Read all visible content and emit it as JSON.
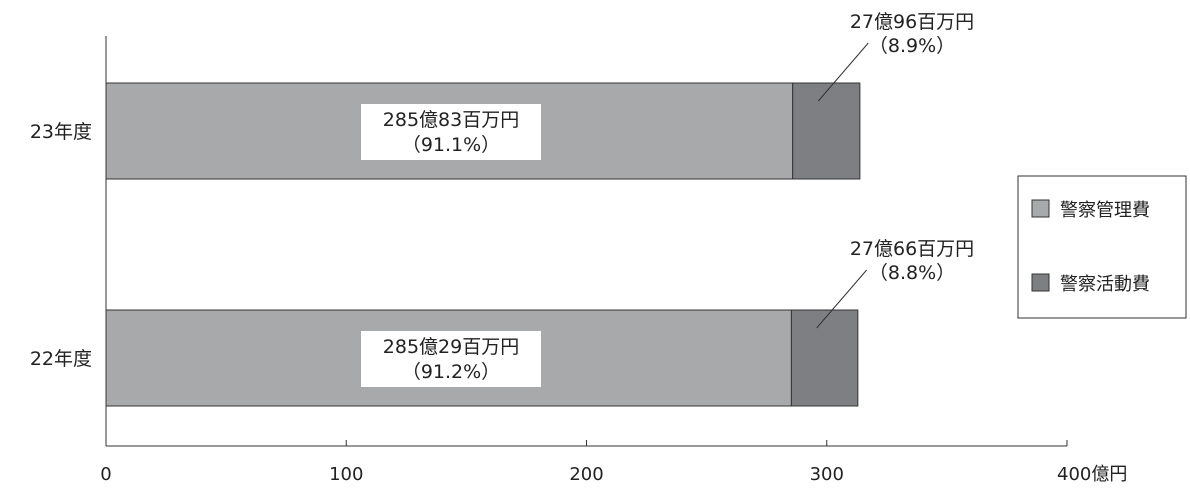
{
  "chart_data": {
    "type": "bar",
    "orientation": "horizontal",
    "stacked": true,
    "categories": [
      "23年度",
      "22年度"
    ],
    "series": [
      {
        "name": "警察管理費",
        "color": "#a8a9ab",
        "values": [
          285.83,
          285.29
        ]
      },
      {
        "name": "警察活動費",
        "color": "#7e7f82",
        "values": [
          27.96,
          27.66
        ]
      }
    ],
    "data_labels": {
      "警察管理費": [
        {
          "amount": "285億83百万円",
          "pct": "（91.1%）"
        },
        {
          "amount": "285億29百万円",
          "pct": "（91.2%）"
        }
      ],
      "警察活動費": [
        {
          "amount": "27億96百万円",
          "pct": "（8.9%）"
        },
        {
          "amount": "27億66百万円",
          "pct": "（8.8%）"
        }
      ]
    },
    "xlim": [
      0,
      400
    ],
    "xticks": [
      0,
      100,
      200,
      300,
      400
    ],
    "xtick_labels": [
      "0",
      "100",
      "200",
      "300",
      "400億円"
    ],
    "grid": false,
    "legend_position": "right"
  }
}
